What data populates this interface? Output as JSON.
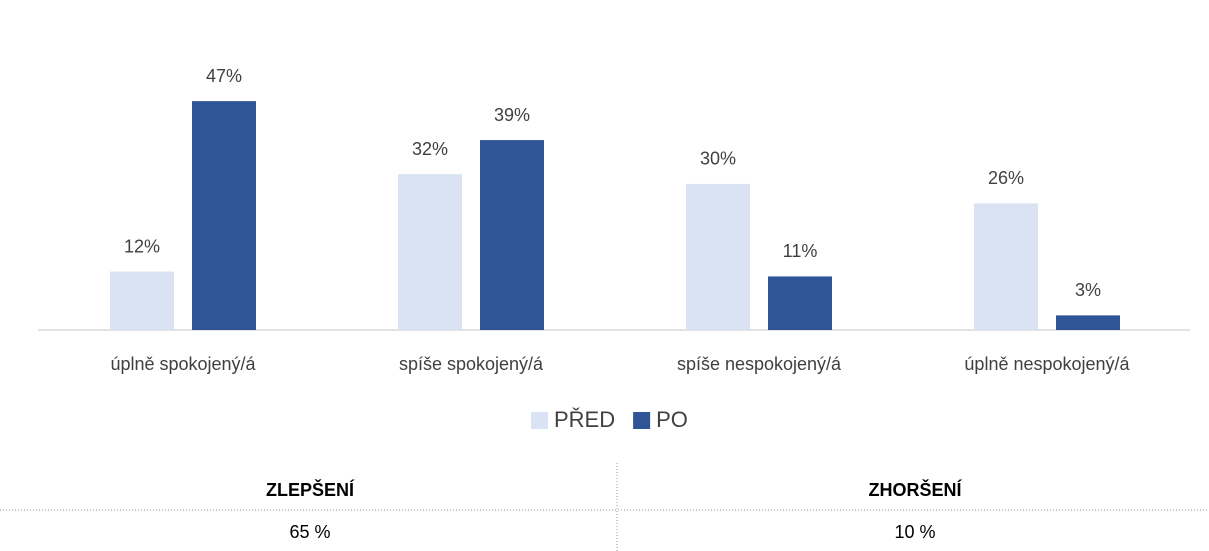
{
  "chart_data": {
    "type": "bar",
    "categories": [
      "úplně spokojený/á",
      "spíše spokojený/á",
      "spíše nespokojený/á",
      "úplně nespokojený/á"
    ],
    "series": [
      {
        "name": "PŘED",
        "color": "#dae3f3",
        "values": [
          12,
          32,
          30,
          26
        ],
        "value_labels": [
          "12%",
          "32%",
          "30%",
          "26%"
        ]
      },
      {
        "name": "PO",
        "color": "#2f5597",
        "values": [
          47,
          39,
          11,
          3
        ],
        "value_labels": [
          "47%",
          "39%",
          "11%",
          "3%"
        ]
      }
    ]
  },
  "table": {
    "headers": [
      "ZLEPŠENÍ",
      "ZHORŠENÍ"
    ],
    "rows": [
      [
        "65 %",
        "10 %"
      ]
    ]
  }
}
